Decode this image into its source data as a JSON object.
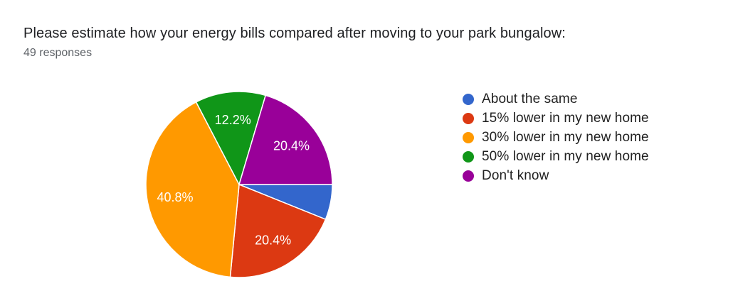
{
  "header": {
    "title": "Please estimate how your energy bills compared after moving to your park bungalow:",
    "responses_count": "49 responses"
  },
  "chart_data": {
    "type": "pie",
    "title": "Please estimate how your energy bills compared after moving to your park bungalow:",
    "subtitle": "49 responses",
    "categories": [
      "About the same",
      "15% lower in my new home",
      "30% lower in my new home",
      "50% lower in my new home",
      "Don't know"
    ],
    "values_pct": [
      6.1,
      20.4,
      40.8,
      12.2,
      20.4
    ],
    "slice_labels": [
      "",
      "20.4%",
      "40.8%",
      "12.2%",
      "20.4%"
    ],
    "colors": [
      "#3366cc",
      "#dc3912",
      "#ff9900",
      "#109618",
      "#990099"
    ],
    "start_angle_deg": 90,
    "direction": "clockwise",
    "legend_position": "right",
    "slice_label_color": "#ffffff",
    "slice_border_color": "#ffffff"
  }
}
